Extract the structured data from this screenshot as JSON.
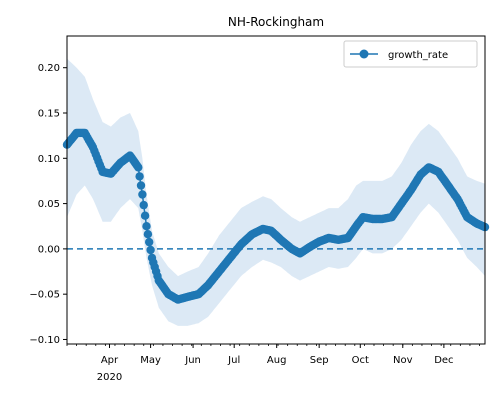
{
  "chart_data": {
    "type": "line",
    "title": "NH-Rockingham",
    "xlabel": "",
    "ylabel": "",
    "x_range": [
      "2020-03-01",
      "2020-12-31"
    ],
    "ylim": [
      -0.105,
      0.235
    ],
    "x_tick_labels": [
      "Apr",
      "May",
      "Jun",
      "Jul",
      "Aug",
      "Sep",
      "Oct",
      "Nov",
      "Dec"
    ],
    "x_tick_dates": [
      "2020-04-01",
      "2020-05-01",
      "2020-06-01",
      "2020-07-01",
      "2020-08-01",
      "2020-09-01",
      "2020-10-01",
      "2020-11-01",
      "2020-12-01"
    ],
    "x_sub_label": "2020",
    "y_ticks": [
      -0.1,
      -0.05,
      0.0,
      0.05,
      0.1,
      0.15,
      0.2
    ],
    "y_tick_labels": [
      "−0.10",
      "−0.05",
      "0.00",
      "0.05",
      "0.10",
      "0.15",
      "0.20"
    ],
    "legend_position": "top-right",
    "reference_line": {
      "y": 0.0,
      "style": "dashed"
    },
    "series": [
      {
        "name": "growth_rate",
        "color": "#1f77b4",
        "band_color": "#dce9f5",
        "points": [
          [
            "2020-03-01",
            0.115,
            0.035,
            0.21
          ],
          [
            "2020-03-08",
            0.128,
            0.06,
            0.2
          ],
          [
            "2020-03-14",
            0.128,
            0.07,
            0.19
          ],
          [
            "2020-03-20",
            0.112,
            0.055,
            0.165
          ],
          [
            "2020-03-27",
            0.085,
            0.03,
            0.14
          ],
          [
            "2020-04-02",
            0.083,
            0.03,
            0.135
          ],
          [
            "2020-04-09",
            0.095,
            0.045,
            0.145
          ],
          [
            "2020-04-16",
            0.103,
            0.055,
            0.15
          ],
          [
            "2020-04-22",
            0.09,
            0.045,
            0.13
          ],
          [
            "2020-04-25",
            0.06,
            0.02,
            0.1
          ],
          [
            "2020-04-28",
            0.025,
            -0.01,
            0.06
          ],
          [
            "2020-05-02",
            -0.01,
            -0.04,
            0.02
          ],
          [
            "2020-05-07",
            -0.035,
            -0.065,
            -0.005
          ],
          [
            "2020-05-14",
            -0.05,
            -0.08,
            -0.02
          ],
          [
            "2020-05-21",
            -0.056,
            -0.085,
            -0.03
          ],
          [
            "2020-05-28",
            -0.053,
            -0.085,
            -0.025
          ],
          [
            "2020-06-05",
            -0.05,
            -0.082,
            -0.02
          ],
          [
            "2020-06-12",
            -0.04,
            -0.075,
            -0.005
          ],
          [
            "2020-06-20",
            -0.025,
            -0.06,
            0.015
          ],
          [
            "2020-06-28",
            -0.01,
            -0.045,
            0.03
          ],
          [
            "2020-07-06",
            0.005,
            -0.03,
            0.045
          ],
          [
            "2020-07-14",
            0.016,
            -0.02,
            0.052
          ],
          [
            "2020-07-22",
            0.022,
            -0.012,
            0.058
          ],
          [
            "2020-07-28",
            0.02,
            -0.015,
            0.055
          ],
          [
            "2020-08-04",
            0.01,
            -0.02,
            0.045
          ],
          [
            "2020-08-12",
            0.0,
            -0.03,
            0.035
          ],
          [
            "2020-08-18",
            -0.005,
            -0.035,
            0.03
          ],
          [
            "2020-08-25",
            0.002,
            -0.03,
            0.035
          ],
          [
            "2020-09-01",
            0.008,
            -0.025,
            0.04
          ],
          [
            "2020-09-08",
            0.012,
            -0.02,
            0.045
          ],
          [
            "2020-09-15",
            0.01,
            -0.022,
            0.045
          ],
          [
            "2020-09-22",
            0.012,
            -0.02,
            0.055
          ],
          [
            "2020-09-28",
            0.025,
            -0.01,
            0.07
          ],
          [
            "2020-10-03",
            0.035,
            0.0,
            0.075
          ],
          [
            "2020-10-10",
            0.033,
            -0.005,
            0.075
          ],
          [
            "2020-10-17",
            0.033,
            -0.005,
            0.075
          ],
          [
            "2020-10-24",
            0.035,
            0.0,
            0.08
          ],
          [
            "2020-10-31",
            0.05,
            0.01,
            0.095
          ],
          [
            "2020-11-07",
            0.065,
            0.025,
            0.115
          ],
          [
            "2020-11-14",
            0.082,
            0.04,
            0.13
          ],
          [
            "2020-11-20",
            0.09,
            0.05,
            0.138
          ],
          [
            "2020-11-27",
            0.085,
            0.04,
            0.13
          ],
          [
            "2020-12-04",
            0.07,
            0.025,
            0.115
          ],
          [
            "2020-12-11",
            0.055,
            0.01,
            0.1
          ],
          [
            "2020-12-18",
            0.035,
            -0.01,
            0.08
          ],
          [
            "2020-12-25",
            0.028,
            -0.02,
            0.075
          ],
          [
            "2020-12-31",
            0.024,
            -0.03,
            0.072
          ]
        ]
      }
    ]
  }
}
